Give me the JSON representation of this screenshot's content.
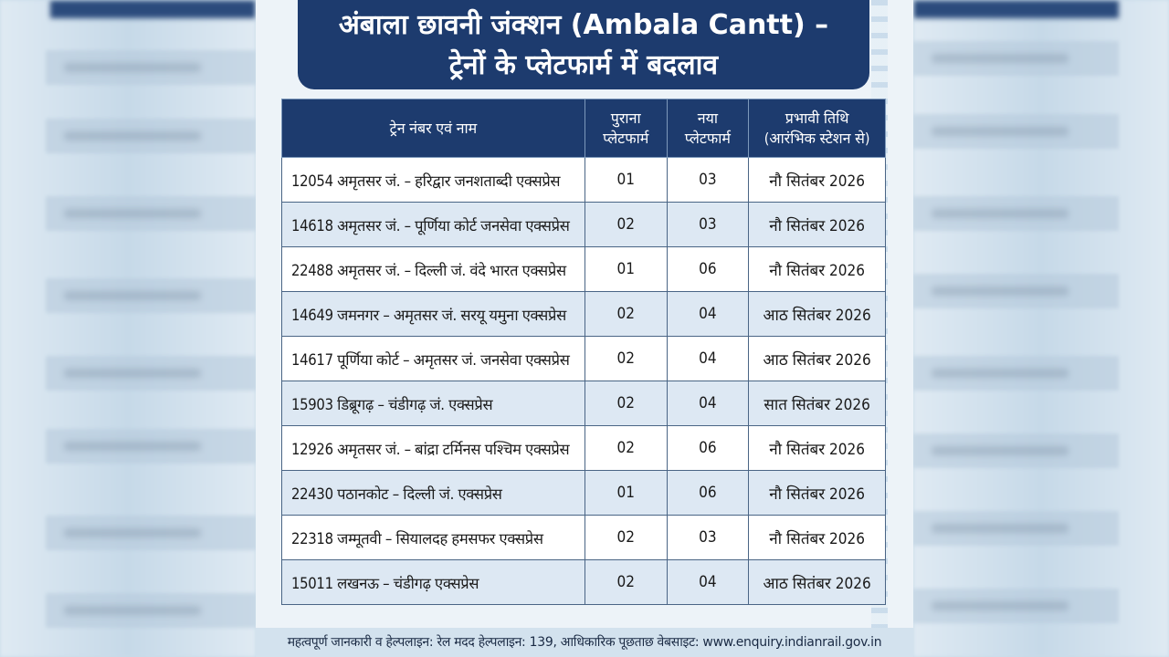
{
  "title": {
    "line1": "अंबाला छावनी जंक्शन (Ambala Cantt) –",
    "line2": "ट्रेनों के प्लेटफार्म में बदलाव"
  },
  "table": {
    "headers": {
      "name": "ट्रेन नंबर एवं नाम",
      "old_line1": "पुराना",
      "old_line2": "प्लेटफार्म",
      "new_line1": "नया",
      "new_line2": "प्लेटफार्म",
      "date_line1": "प्रभावी तिथि",
      "date_line2": "(आरंभिक स्टेशन से)"
    },
    "rows": [
      {
        "name": "12054 अमृतसर जं. – हरिद्वार जनशताब्दी एक्सप्रेस",
        "old": "01",
        "new": "03",
        "date": "नौ सितंबर 2026"
      },
      {
        "name": "14618 अमृतसर जं. – पूर्णिया कोर्ट जनसेवा एक्सप्रेस",
        "old": "02",
        "new": "03",
        "date": "नौ सितंबर 2026"
      },
      {
        "name": "22488 अमृतसर जं. – दिल्ली जं. वंदे भारत एक्सप्रेस",
        "old": "01",
        "new": "06",
        "date": "नौ सितंबर 2026"
      },
      {
        "name": "14649 जमनगर – अमृतसर जं. सरयू यमुना एक्सप्रेस",
        "old": "02",
        "new": "04",
        "date": "आठ सितंबर 2026"
      },
      {
        "name": "14617 पूर्णिया कोर्ट – अमृतसर जं. जनसेवा एक्सप्रेस",
        "old": "02",
        "new": "04",
        "date": "आठ सितंबर 2026"
      },
      {
        "name": "15903 डिब्रूगढ़ – चंडीगढ़ जं. एक्सप्रेस",
        "old": "02",
        "new": "04",
        "date": "सात सितंबर 2026"
      },
      {
        "name": "12926 अमृतसर जं. – बांद्रा टर्मिनस पश्चिम एक्सप्रेस",
        "old": "02",
        "new": "06",
        "date": "नौ सितंबर 2026"
      },
      {
        "name": "22430 पठानकोट – दिल्ली जं. एक्सप्रेस",
        "old": "01",
        "new": "06",
        "date": "नौ सितंबर 2026"
      },
      {
        "name": "22318 जम्मूतवी – सियालदह हमसफर एक्सप्रेस",
        "old": "02",
        "new": "03",
        "date": "नौ सितंबर 2026"
      },
      {
        "name": "15011 लखनऊ – चंडीगढ़ एक्सप्रेस",
        "old": "02",
        "new": "04",
        "date": "आठ सितंबर 2026"
      }
    ]
  },
  "footer": "महत्वपूर्ण जानकारी व हेल्पलाइन: रेल मदद हेल्पलाइन: 139, आधिकारिक पूछताछ वेबसाइट: www.enquiry.indianrail.gov.in",
  "colors": {
    "header_navy": "#1d3b6e",
    "row_alt": "#dde8f3",
    "card_bg": "#edf3f8"
  }
}
